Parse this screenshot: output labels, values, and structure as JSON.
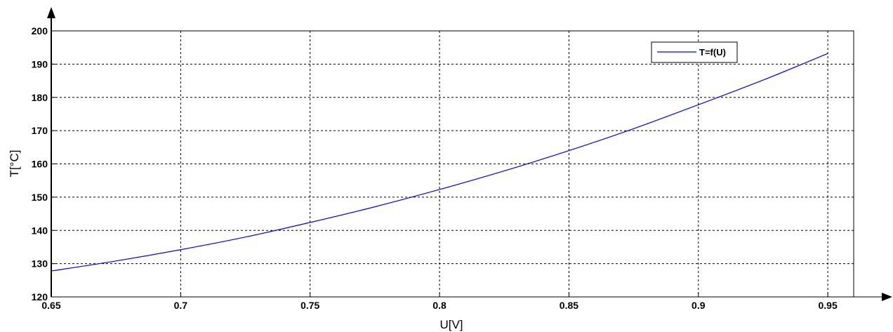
{
  "chart_data": {
    "type": "line",
    "xlabel": "U[V]",
    "ylabel": "T[°C]",
    "xlim": [
      0.65,
      0.96
    ],
    "ylim": [
      120,
      200
    ],
    "xticks": [
      0.65,
      0.7,
      0.75,
      0.8,
      0.85,
      0.9,
      0.95
    ],
    "xtick_labels": [
      "0.65",
      "0.7",
      "0.75",
      "0.8",
      "0.85",
      "0.9",
      "0.95"
    ],
    "yticks": [
      120,
      130,
      140,
      150,
      160,
      170,
      180,
      190,
      200
    ],
    "ytick_labels": [
      "120",
      "130",
      "140",
      "150",
      "160",
      "170",
      "180",
      "190",
      "200"
    ],
    "grid": true,
    "legend_position": "top-right",
    "series": [
      {
        "name": "T=f(U)",
        "color": "#0000ff",
        "x": [
          0.65,
          0.675,
          0.7,
          0.725,
          0.75,
          0.775,
          0.8,
          0.825,
          0.85,
          0.875,
          0.9,
          0.925,
          0.95
        ],
        "y": [
          127.8,
          130.8,
          134.2,
          138.0,
          142.4,
          147.1,
          152.3,
          157.9,
          164.0,
          170.6,
          177.8,
          185.2,
          193.2
        ]
      }
    ]
  }
}
